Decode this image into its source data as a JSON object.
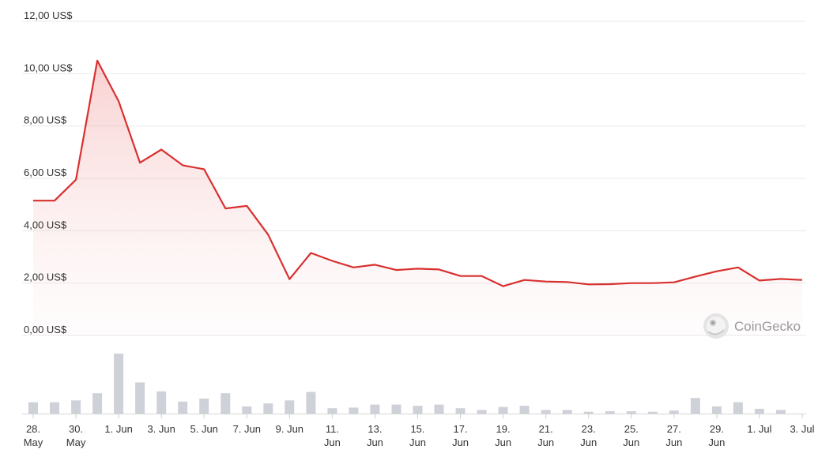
{
  "chart_data": {
    "type": "line",
    "y_axis": {
      "ticks": [
        "0,00 US$",
        "2,00 US$",
        "4,00 US$",
        "6,00 US$",
        "8,00 US$",
        "10,00 US$",
        "12,00 US$"
      ],
      "ylim": [
        0,
        12
      ]
    },
    "x_axis": {
      "labels": [
        {
          "day": 0,
          "lines": [
            "28.",
            "May"
          ]
        },
        {
          "day": 2,
          "lines": [
            "30.",
            "May"
          ]
        },
        {
          "day": 4,
          "lines": [
            "1. Jun"
          ]
        },
        {
          "day": 6,
          "lines": [
            "3. Jun"
          ]
        },
        {
          "day": 8,
          "lines": [
            "5. Jun"
          ]
        },
        {
          "day": 10,
          "lines": [
            "7. Jun"
          ]
        },
        {
          "day": 12,
          "lines": [
            "9. Jun"
          ]
        },
        {
          "day": 14,
          "lines": [
            "11.",
            "Jun"
          ]
        },
        {
          "day": 16,
          "lines": [
            "13.",
            "Jun"
          ]
        },
        {
          "day": 18,
          "lines": [
            "15.",
            "Jun"
          ]
        },
        {
          "day": 20,
          "lines": [
            "17.",
            "Jun"
          ]
        },
        {
          "day": 22,
          "lines": [
            "19.",
            "Jun"
          ]
        },
        {
          "day": 24,
          "lines": [
            "21.",
            "Jun"
          ]
        },
        {
          "day": 26,
          "lines": [
            "23.",
            "Jun"
          ]
        },
        {
          "day": 28,
          "lines": [
            "25.",
            "Jun"
          ]
        },
        {
          "day": 30,
          "lines": [
            "27.",
            "Jun"
          ]
        },
        {
          "day": 32,
          "lines": [
            "29.",
            "Jun"
          ]
        },
        {
          "day": 34,
          "lines": [
            "1. Jul"
          ]
        },
        {
          "day": 36,
          "lines": [
            "3. Jul"
          ]
        }
      ]
    },
    "price_series": {
      "color": "#d8302f",
      "values": [
        5.15,
        5.15,
        5.95,
        10.5,
        8.95,
        6.6,
        7.1,
        6.5,
        6.35,
        4.85,
        4.95,
        3.85,
        2.15,
        3.15,
        2.85,
        2.6,
        2.7,
        2.5,
        2.55,
        2.52,
        2.27,
        2.27,
        1.88,
        2.12,
        2.06,
        2.04,
        1.95,
        1.96,
        2.0,
        2.0,
        2.03,
        2.25,
        2.45,
        2.6,
        2.1,
        2.16,
        2.12
      ]
    },
    "volume_series": {
      "color": "#cfd1d8",
      "values": [
        0.19,
        0.19,
        0.22,
        0.34,
        1.0,
        0.52,
        0.37,
        0.2,
        0.25,
        0.34,
        0.12,
        0.17,
        0.22,
        0.36,
        0.09,
        0.1,
        0.15,
        0.15,
        0.13,
        0.15,
        0.09,
        0.06,
        0.11,
        0.13,
        0.06,
        0.06,
        0.03,
        0.04,
        0.04,
        0.03,
        0.05,
        0.26,
        0.12,
        0.19,
        0.08,
        0.06,
        0.0
      ]
    },
    "grid": true,
    "legend": "none"
  },
  "watermark": {
    "text": "CoinGecko",
    "icon": "gecko-logo-icon"
  }
}
